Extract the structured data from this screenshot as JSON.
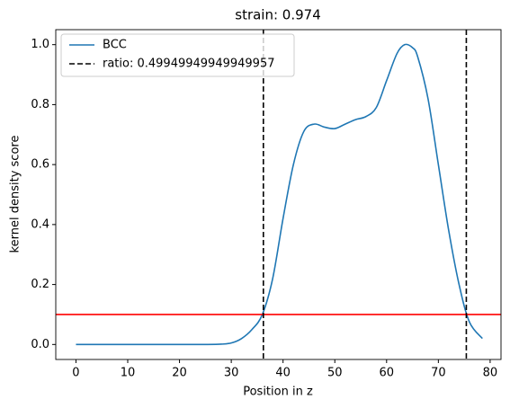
{
  "chart_data": {
    "type": "line",
    "title": "strain: 0.974",
    "xlabel": "Position in z",
    "ylabel": "kernel density score",
    "x": [
      0,
      5,
      10,
      15,
      20,
      25,
      28,
      30,
      32,
      34,
      36,
      38,
      40,
      42,
      44,
      46,
      48,
      50,
      52,
      54,
      56,
      58,
      60,
      62,
      63.5,
      65,
      66,
      68,
      70,
      72,
      74,
      76,
      78.5
    ],
    "series": [
      {
        "name": "BCC",
        "color": "#1f77b4",
        "values": [
          0,
          0,
          0,
          0,
          0,
          0,
          0.001,
          0.005,
          0.02,
          0.05,
          0.1,
          0.22,
          0.42,
          0.6,
          0.71,
          0.735,
          0.725,
          0.72,
          0.735,
          0.75,
          0.76,
          0.79,
          0.88,
          0.97,
          1.0,
          0.99,
          0.96,
          0.82,
          0.6,
          0.38,
          0.2,
          0.075,
          0.02
        ]
      }
    ],
    "vlines": {
      "name": "ratio: 0.49949949949949957",
      "color": "#000000",
      "values": [
        36.2,
        75.4
      ]
    },
    "hline": {
      "value": 0.1,
      "color": "#ff0000"
    },
    "xlim": [
      -3.9,
      82.1
    ],
    "ylim": [
      -0.05,
      1.05
    ],
    "xticks": [
      0,
      10,
      20,
      30,
      40,
      50,
      60,
      70,
      80
    ],
    "yticks": [
      {
        "value": 0,
        "label": "0.0"
      },
      {
        "value": 0.2,
        "label": "0.2"
      },
      {
        "value": 0.4,
        "label": "0.4"
      },
      {
        "value": 0.6,
        "label": "0.6"
      },
      {
        "value": 0.8,
        "label": "0.8"
      },
      {
        "value": 1.0,
        "label": "1.0"
      }
    ],
    "legend": "upper left",
    "grid": false
  }
}
